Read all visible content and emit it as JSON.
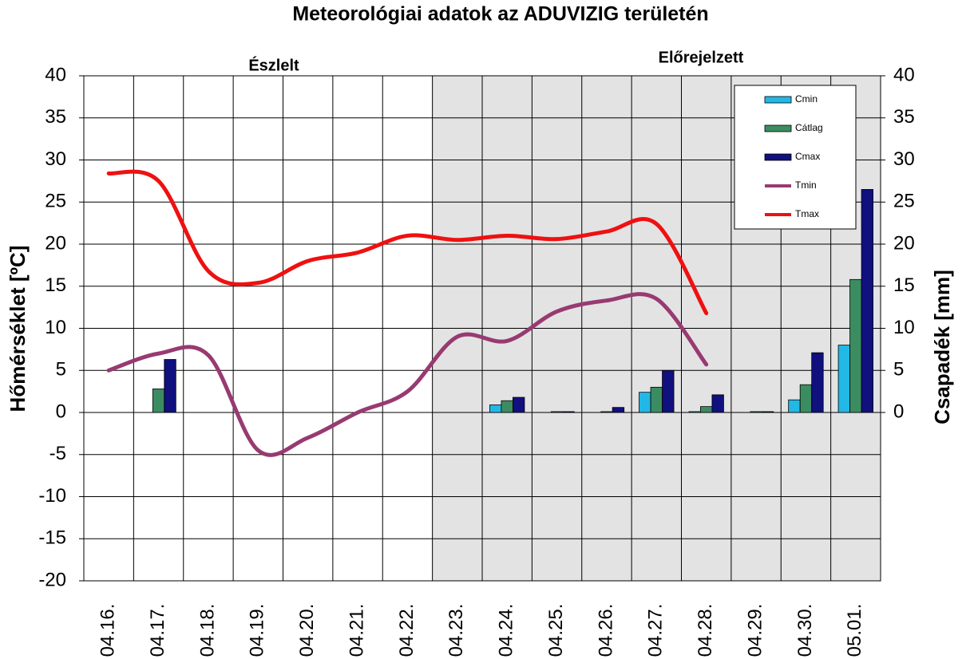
{
  "chart_data": {
    "type": "bar-line",
    "title": "Meteorológiai adatok az ADUVIZIG területén",
    "annotations": [
      "Észlelt",
      "Előrejelzett"
    ],
    "y_label": "Hőmérséklet [ºC]",
    "y2_label": "Csapadék [mm]",
    "categories": [
      "04.16.",
      "04.17.",
      "04.18.",
      "04.19.",
      "04.20.",
      "04.21.",
      "04.22.",
      "04.23.",
      "04.24.",
      "04.25.",
      "04.26.",
      "04.27.",
      "04.28.",
      "04.29.",
      "04.30.",
      "05.01."
    ],
    "series": [
      {
        "name": "Cmin",
        "type": "bar",
        "axis": "y2",
        "color": "#22b8e6",
        "values": [
          null,
          null,
          null,
          null,
          null,
          null,
          null,
          null,
          0.9,
          0,
          0,
          2.4,
          0.1,
          0,
          1.5,
          8.0
        ]
      },
      {
        "name": "Cátlag",
        "type": "bar",
        "axis": "y2",
        "color": "#3c8c62",
        "values": [
          null,
          2.8,
          null,
          null,
          null,
          null,
          null,
          null,
          1.4,
          0.1,
          0.1,
          3.0,
          0.7,
          0.1,
          3.3,
          15.8
        ]
      },
      {
        "name": "Cmax",
        "type": "bar",
        "axis": "y2",
        "color": "#10107e",
        "values": [
          null,
          6.3,
          null,
          null,
          null,
          null,
          null,
          null,
          1.8,
          0.1,
          0.6,
          5.0,
          2.1,
          0.1,
          7.1,
          26.5
        ]
      },
      {
        "name": "Tmin",
        "type": "line",
        "color": "#983a72",
        "values": [
          5,
          7,
          6.8,
          -4.5,
          -3,
          0,
          2.5,
          9,
          8.5,
          12,
          13.3,
          13.5,
          5.7,
          null,
          null,
          null
        ]
      },
      {
        "name": "Tmax",
        "type": "line",
        "color": "#ee1111",
        "values": [
          28.4,
          27.5,
          16.8,
          15.4,
          18,
          19,
          21,
          20.5,
          21,
          20.6,
          21.5,
          22.4,
          11.8,
          null,
          null,
          null
        ]
      }
    ],
    "ylim": [
      -20,
      40
    ],
    "yticks": [
      -20,
      -15,
      -10,
      -5,
      0,
      5,
      10,
      15,
      20,
      25,
      30,
      35,
      40
    ],
    "y2lim": [
      -20,
      40
    ],
    "y2ticks": [
      0,
      5,
      10,
      15,
      20,
      25,
      30,
      35,
      40
    ],
    "grid": true,
    "legend": "top-right"
  }
}
